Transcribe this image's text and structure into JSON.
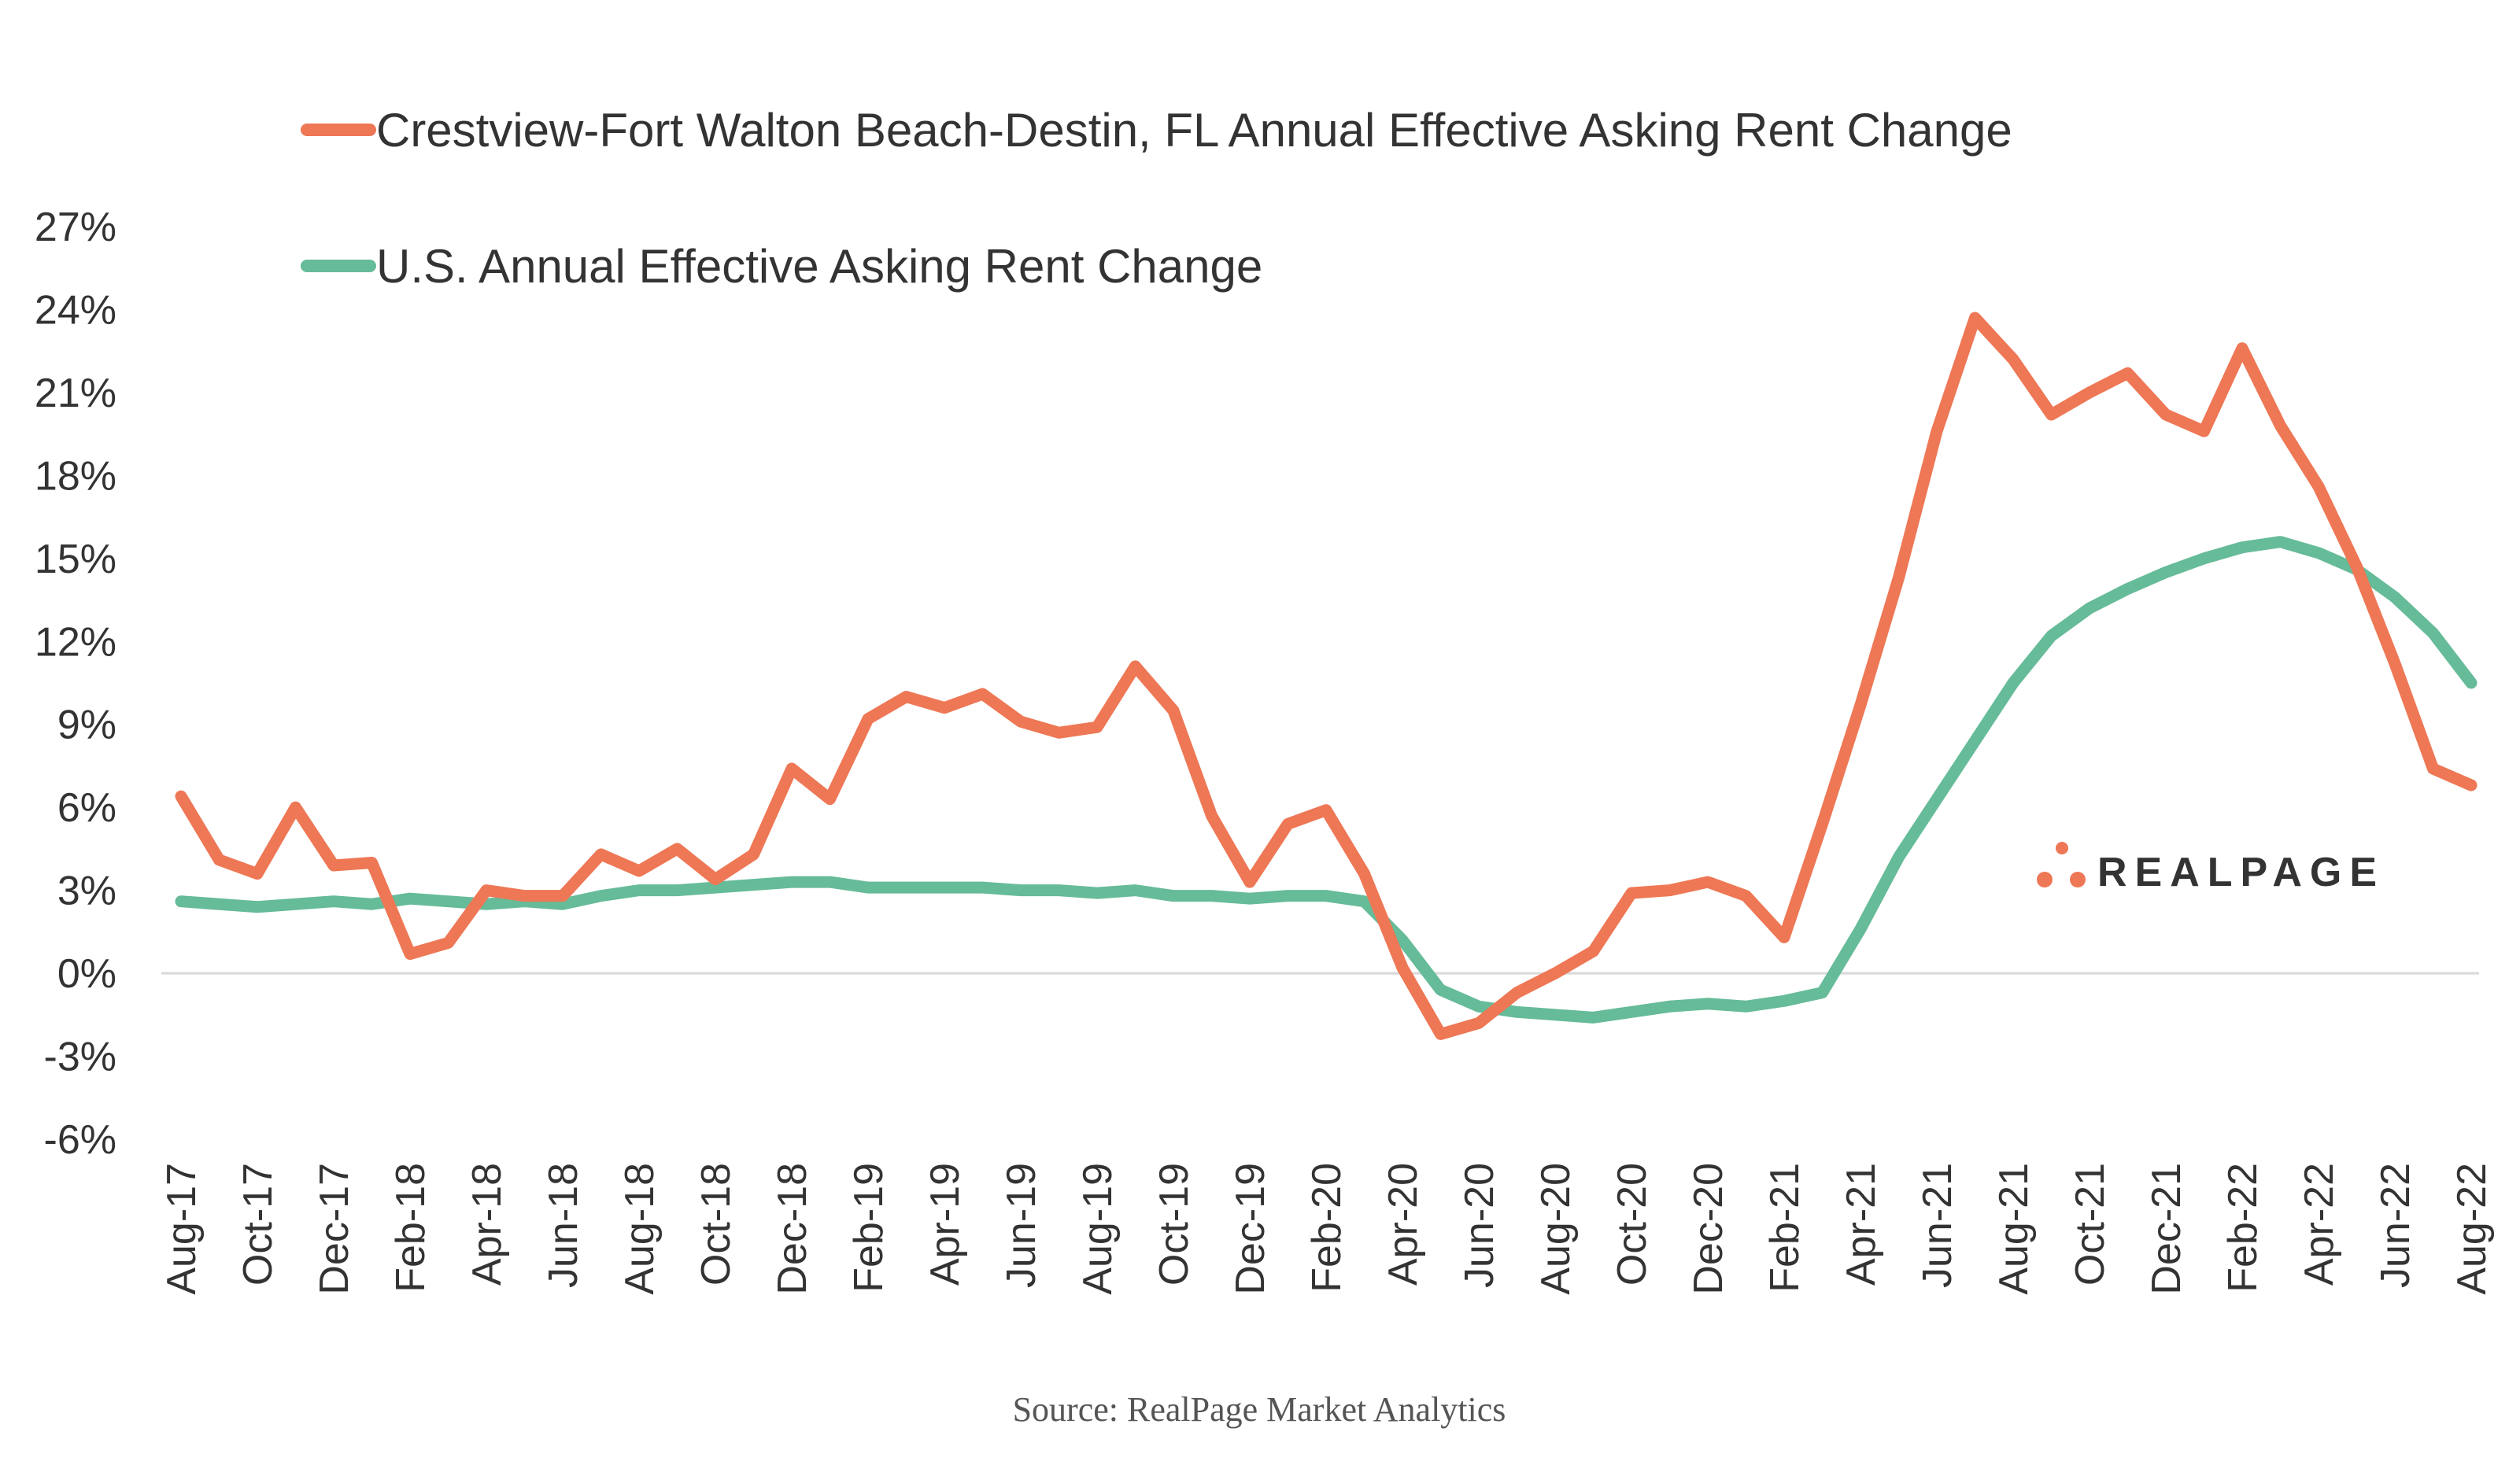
{
  "chart_data": {
    "type": "line",
    "xlabel": "",
    "ylabel": "",
    "ylim": [
      -6,
      27
    ],
    "y_ticks": [
      "-6%",
      "-3%",
      "0%",
      "3%",
      "6%",
      "9%",
      "12%",
      "15%",
      "18%",
      "21%",
      "24%",
      "27%"
    ],
    "y_tick_values": [
      -6,
      -3,
      0,
      3,
      6,
      9,
      12,
      15,
      18,
      21,
      24,
      27
    ],
    "x_tick_labels": [
      "Aug-17",
      "Oct-17",
      "Dec-17",
      "Feb-18",
      "Apr-18",
      "Jun-18",
      "Aug-18",
      "Oct-18",
      "Dec-18",
      "Feb-19",
      "Apr-19",
      "Jun-19",
      "Aug-19",
      "Oct-19",
      "Dec-19",
      "Feb-20",
      "Apr-20",
      "Jun-20",
      "Aug-20",
      "Oct-20",
      "Dec-20",
      "Feb-21",
      "Apr-21",
      "Jun-21",
      "Aug-21",
      "Oct-21",
      "Dec-21",
      "Feb-22",
      "Apr-22",
      "Jun-22",
      "Aug-22"
    ],
    "x": [
      "Aug-17",
      "Sep-17",
      "Oct-17",
      "Nov-17",
      "Dec-17",
      "Jan-18",
      "Feb-18",
      "Mar-18",
      "Apr-18",
      "May-18",
      "Jun-18",
      "Jul-18",
      "Aug-18",
      "Sep-18",
      "Oct-18",
      "Nov-18",
      "Dec-18",
      "Jan-19",
      "Feb-19",
      "Mar-19",
      "Apr-19",
      "May-19",
      "Jun-19",
      "Jul-19",
      "Aug-19",
      "Sep-19",
      "Oct-19",
      "Nov-19",
      "Dec-19",
      "Jan-20",
      "Feb-20",
      "Mar-20",
      "Apr-20",
      "May-20",
      "Jun-20",
      "Jul-20",
      "Aug-20",
      "Sep-20",
      "Oct-20",
      "Nov-20",
      "Dec-20",
      "Jan-21",
      "Feb-21",
      "Mar-21",
      "Apr-21",
      "May-21",
      "Jun-21",
      "Jul-21",
      "Aug-21",
      "Sep-21",
      "Oct-21",
      "Nov-21",
      "Dec-21",
      "Jan-22",
      "Feb-22",
      "Mar-22",
      "Apr-22",
      "May-22",
      "Jun-22",
      "Jul-22",
      "Aug-22"
    ],
    "legend_position": "top-left",
    "grid": false,
    "series": [
      {
        "name": "Crestview-Fort Walton Beach-Destin, FL Annual Effective Asking Rent Change",
        "color": "#ee7755",
        "values": [
          6.4,
          4.1,
          3.6,
          6.0,
          3.9,
          4.0,
          0.7,
          1.1,
          3.0,
          2.8,
          2.8,
          4.3,
          3.7,
          4.5,
          3.4,
          4.3,
          7.4,
          6.3,
          9.2,
          10.0,
          9.6,
          10.1,
          9.1,
          8.7,
          8.9,
          11.1,
          9.5,
          5.7,
          3.3,
          5.4,
          5.9,
          3.6,
          0.2,
          -2.2,
          -1.8,
          -0.7,
          0.0,
          0.8,
          2.9,
          3.0,
          3.3,
          2.8,
          1.3,
          5.4,
          9.7,
          14.3,
          19.6,
          23.7,
          22.2,
          20.2,
          21.0,
          21.7,
          20.2,
          19.6,
          22.6,
          19.8,
          17.6,
          14.7,
          11.2,
          7.4,
          6.8
        ]
      },
      {
        "name": "U.S. Annual Effective Asking Rent Change",
        "color": "#66bb99",
        "values": [
          2.6,
          2.5,
          2.4,
          2.5,
          2.6,
          2.5,
          2.7,
          2.6,
          2.5,
          2.6,
          2.5,
          2.8,
          3.0,
          3.0,
          3.1,
          3.2,
          3.3,
          3.3,
          3.1,
          3.1,
          3.1,
          3.1,
          3.0,
          3.0,
          2.9,
          3.0,
          2.8,
          2.8,
          2.7,
          2.8,
          2.8,
          2.6,
          1.2,
          -0.6,
          -1.2,
          -1.4,
          -1.5,
          -1.6,
          -1.4,
          -1.2,
          -1.1,
          -1.2,
          -1.0,
          -0.7,
          1.6,
          4.2,
          6.3,
          8.4,
          10.5,
          12.2,
          13.2,
          13.9,
          14.5,
          15.0,
          15.4,
          15.6,
          15.2,
          14.6,
          13.6,
          12.3,
          10.5
        ]
      }
    ],
    "source": "Source: RealPage Market Analytics",
    "logo": "REALPAGE"
  }
}
